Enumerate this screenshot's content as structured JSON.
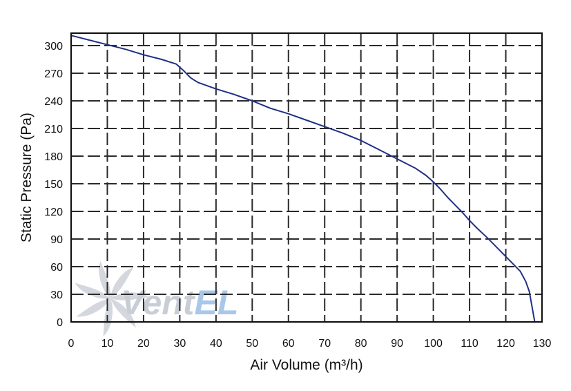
{
  "watermark": {
    "text_left": "Vent",
    "text_right": "EL",
    "color_left": "#c9ced6",
    "color_right": "#a9c7e9"
  },
  "chart_data": {
    "type": "line",
    "title": "",
    "xlabel": "Air Volume (m³/h)",
    "ylabel": "Static Pressure (Pa)",
    "xlim": [
      0,
      130
    ],
    "ylim": [
      0,
      310
    ],
    "x_ticks": [
      "0",
      "10",
      "20",
      "30",
      "40",
      "50",
      "60",
      "70",
      "80",
      "90",
      "100",
      "110",
      "120",
      "130"
    ],
    "y_ticks": [
      "0",
      "30",
      "60",
      "90",
      "120",
      "150",
      "180",
      "210",
      "240",
      "270",
      "300"
    ],
    "grid": true,
    "series": [
      {
        "color": "#1f2f86",
        "x": [
          0,
          5,
          10,
          15,
          20,
          25,
          29,
          31,
          33,
          35,
          40,
          45,
          50,
          55,
          60,
          65,
          70,
          75,
          80,
          85,
          90,
          95,
          98,
          100,
          102,
          104,
          106,
          108,
          110,
          112,
          115,
          118,
          121,
          124,
          125.5,
          126.5,
          127,
          127.5,
          128
        ],
        "y": [
          311,
          306,
          301,
          296,
          290,
          285,
          280,
          273,
          265,
          260,
          253,
          247,
          240,
          232,
          226,
          219,
          212,
          205,
          197,
          187,
          177,
          167,
          159,
          152,
          144,
          135,
          127,
          119,
          110,
          102,
          91,
          79,
          67,
          55,
          44,
          33,
          22,
          11,
          0
        ]
      }
    ]
  }
}
